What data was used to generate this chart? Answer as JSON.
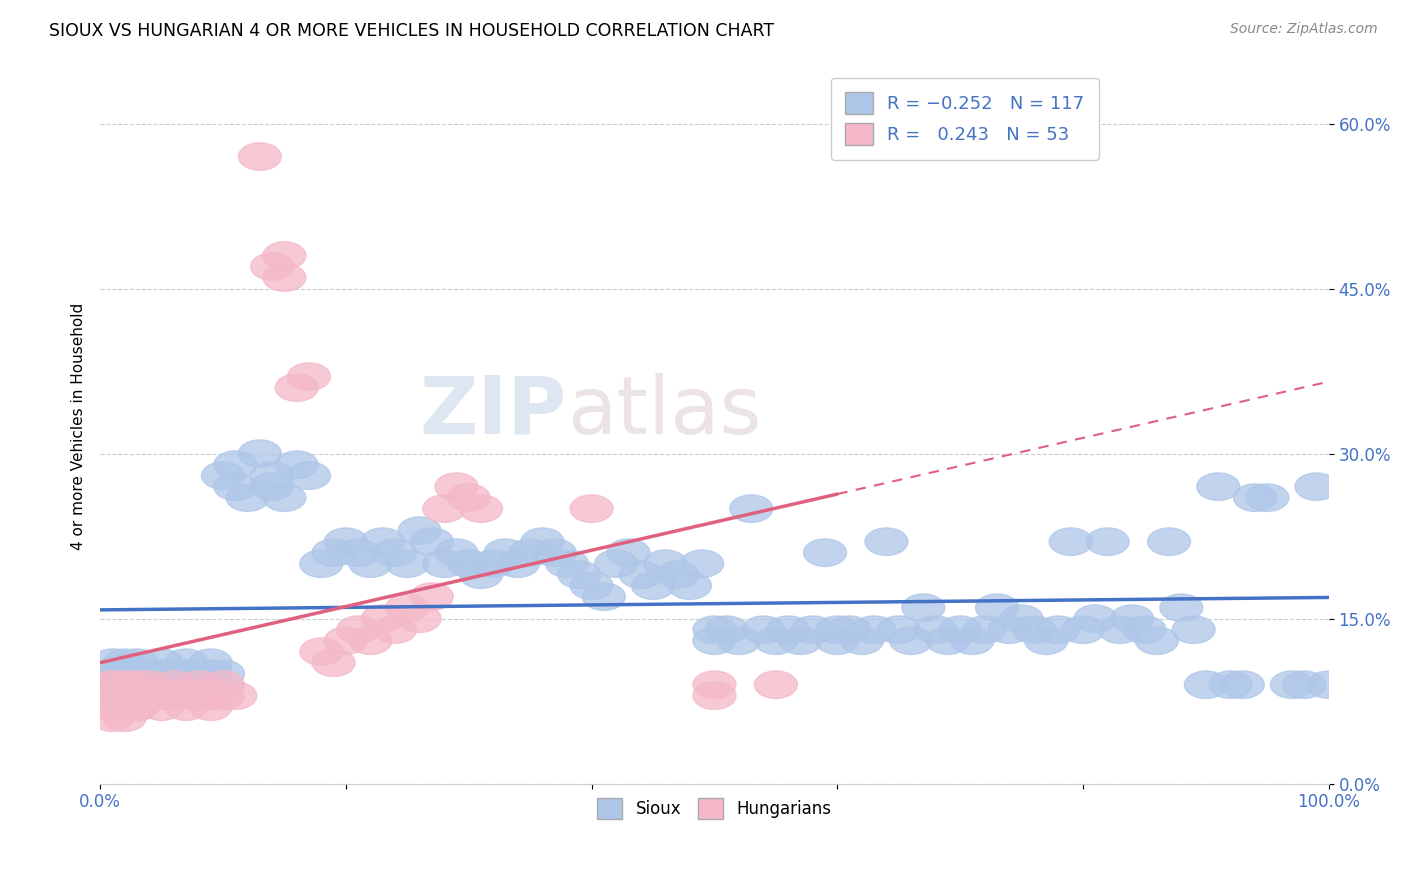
{
  "title": "SIOUX VS HUNGARIAN 4 OR MORE VEHICLES IN HOUSEHOLD CORRELATION CHART",
  "source": "Source: ZipAtlas.com",
  "ylabel": "4 or more Vehicles in Household",
  "xlim": [
    0,
    100
  ],
  "ylim": [
    0,
    65
  ],
  "x_ticks": [
    0,
    20,
    40,
    60,
    80,
    100
  ],
  "x_tick_labels": [
    "0.0%",
    "",
    "",
    "",
    "",
    "100.0%"
  ],
  "y_ticks": [
    0,
    15,
    30,
    45,
    60
  ],
  "y_tick_labels": [
    "0.0%",
    "15.0%",
    "30.0%",
    "45.0%",
    "60.0%"
  ],
  "sioux_color": "#aec6e8",
  "hungarian_color": "#f4b8c8",
  "sioux_line_color": "#4472c4",
  "hungarian_line_color": "#e06080",
  "watermark_zip": "ZIP",
  "watermark_atlas": "atlas",
  "sioux_data": [
    [
      1,
      10
    ],
    [
      1,
      9
    ],
    [
      1,
      8
    ],
    [
      1,
      11
    ],
    [
      2,
      10
    ],
    [
      2,
      9
    ],
    [
      2,
      8
    ],
    [
      2,
      11
    ],
    [
      2,
      7
    ],
    [
      3,
      10
    ],
    [
      3,
      9
    ],
    [
      3,
      8
    ],
    [
      3,
      11
    ],
    [
      3,
      7
    ],
    [
      4,
      10
    ],
    [
      4,
      9
    ],
    [
      5,
      10
    ],
    [
      5,
      11
    ],
    [
      5,
      8
    ],
    [
      6,
      9
    ],
    [
      6,
      10
    ],
    [
      7,
      10
    ],
    [
      7,
      11
    ],
    [
      8,
      9
    ],
    [
      8,
      10
    ],
    [
      9,
      11
    ],
    [
      9,
      10
    ],
    [
      10,
      10
    ],
    [
      10,
      28
    ],
    [
      11,
      29
    ],
    [
      11,
      27
    ],
    [
      12,
      26
    ],
    [
      13,
      30
    ],
    [
      14,
      28
    ],
    [
      14,
      27
    ],
    [
      15,
      26
    ],
    [
      16,
      29
    ],
    [
      17,
      28
    ],
    [
      18,
      20
    ],
    [
      19,
      21
    ],
    [
      20,
      22
    ],
    [
      21,
      21
    ],
    [
      22,
      20
    ],
    [
      23,
      22
    ],
    [
      24,
      21
    ],
    [
      25,
      20
    ],
    [
      26,
      23
    ],
    [
      27,
      22
    ],
    [
      28,
      20
    ],
    [
      29,
      21
    ],
    [
      30,
      20
    ],
    [
      31,
      19
    ],
    [
      32,
      20
    ],
    [
      33,
      21
    ],
    [
      34,
      20
    ],
    [
      35,
      21
    ],
    [
      36,
      22
    ],
    [
      37,
      21
    ],
    [
      38,
      20
    ],
    [
      39,
      19
    ],
    [
      40,
      18
    ],
    [
      41,
      17
    ],
    [
      42,
      20
    ],
    [
      43,
      21
    ],
    [
      44,
      19
    ],
    [
      45,
      18
    ],
    [
      46,
      20
    ],
    [
      47,
      19
    ],
    [
      48,
      18
    ],
    [
      49,
      20
    ],
    [
      50,
      14
    ],
    [
      50,
      13
    ],
    [
      51,
      14
    ],
    [
      52,
      13
    ],
    [
      53,
      25
    ],
    [
      54,
      14
    ],
    [
      55,
      13
    ],
    [
      56,
      14
    ],
    [
      57,
      13
    ],
    [
      58,
      14
    ],
    [
      59,
      21
    ],
    [
      60,
      14
    ],
    [
      60,
      13
    ],
    [
      61,
      14
    ],
    [
      62,
      13
    ],
    [
      63,
      14
    ],
    [
      64,
      22
    ],
    [
      65,
      14
    ],
    [
      66,
      13
    ],
    [
      67,
      16
    ],
    [
      68,
      14
    ],
    [
      69,
      13
    ],
    [
      70,
      14
    ],
    [
      71,
      13
    ],
    [
      72,
      14
    ],
    [
      73,
      16
    ],
    [
      74,
      14
    ],
    [
      75,
      15
    ],
    [
      76,
      14
    ],
    [
      77,
      13
    ],
    [
      78,
      14
    ],
    [
      79,
      22
    ],
    [
      80,
      14
    ],
    [
      81,
      15
    ],
    [
      82,
      22
    ],
    [
      83,
      14
    ],
    [
      84,
      15
    ],
    [
      85,
      14
    ],
    [
      86,
      13
    ],
    [
      87,
      22
    ],
    [
      88,
      16
    ],
    [
      89,
      14
    ],
    [
      90,
      9
    ],
    [
      91,
      27
    ],
    [
      92,
      9
    ],
    [
      93,
      9
    ],
    [
      94,
      26
    ],
    [
      95,
      26
    ],
    [
      97,
      9
    ],
    [
      98,
      9
    ],
    [
      99,
      27
    ],
    [
      100,
      9
    ]
  ],
  "hungarian_data": [
    [
      1,
      8
    ],
    [
      1,
      7
    ],
    [
      1,
      9
    ],
    [
      1,
      8
    ],
    [
      1,
      7
    ],
    [
      1,
      9
    ],
    [
      1,
      6
    ],
    [
      2,
      8
    ],
    [
      2,
      7
    ],
    [
      2,
      9
    ],
    [
      2,
      6
    ],
    [
      2,
      8
    ],
    [
      2,
      7
    ],
    [
      3,
      8
    ],
    [
      3,
      7
    ],
    [
      3,
      9
    ],
    [
      3,
      8
    ],
    [
      3,
      7
    ],
    [
      4,
      8
    ],
    [
      4,
      9
    ],
    [
      5,
      8
    ],
    [
      5,
      7
    ],
    [
      6,
      9
    ],
    [
      6,
      8
    ],
    [
      7,
      7
    ],
    [
      7,
      8
    ],
    [
      8,
      9
    ],
    [
      8,
      8
    ],
    [
      9,
      7
    ],
    [
      9,
      8
    ],
    [
      10,
      9
    ],
    [
      10,
      8
    ],
    [
      11,
      8
    ],
    [
      13,
      57
    ],
    [
      14,
      47
    ],
    [
      15,
      46
    ],
    [
      15,
      48
    ],
    [
      16,
      36
    ],
    [
      17,
      37
    ],
    [
      18,
      12
    ],
    [
      19,
      11
    ],
    [
      20,
      13
    ],
    [
      21,
      14
    ],
    [
      22,
      13
    ],
    [
      23,
      15
    ],
    [
      24,
      14
    ],
    [
      25,
      16
    ],
    [
      26,
      15
    ],
    [
      27,
      17
    ],
    [
      28,
      25
    ],
    [
      29,
      27
    ],
    [
      30,
      26
    ],
    [
      31,
      25
    ],
    [
      40,
      25
    ],
    [
      50,
      9
    ],
    [
      50,
      8
    ],
    [
      55,
      9
    ]
  ]
}
